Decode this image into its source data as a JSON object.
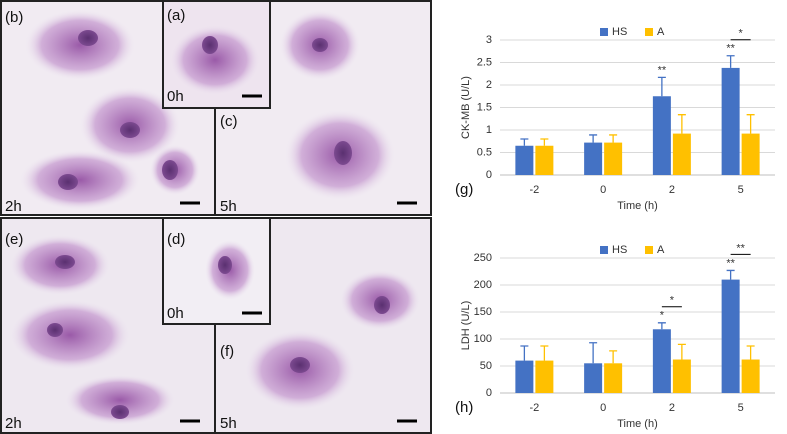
{
  "micrographs": [
    {
      "label": "(b)",
      "time": "2h"
    },
    {
      "label": "(a)",
      "time": "0h"
    },
    {
      "label": "(c)",
      "time": "5h"
    },
    {
      "label": "(e)",
      "time": "2h"
    },
    {
      "label": "(d)",
      "time": "0h"
    },
    {
      "label": "(f)",
      "time": "5h"
    }
  ],
  "chart_data": [
    {
      "type": "bar",
      "panel": "(g)",
      "y_label": "CK-MB (U/L)",
      "x_label": "Time (h)",
      "categories": [
        "-2",
        "0",
        "2",
        "5"
      ],
      "series": [
        {
          "name": "HS",
          "color": "#4472c4",
          "values": [
            0.65,
            0.72,
            1.75,
            2.38
          ],
          "errors": [
            0.15,
            0.17,
            0.42,
            0.27
          ]
        },
        {
          "name": "A",
          "color": "#ffc000",
          "values": [
            0.65,
            0.72,
            0.92,
            0.92
          ],
          "errors": [
            0.15,
            0.17,
            0.42,
            0.42
          ]
        }
      ],
      "ylim": [
        0,
        3
      ],
      "yticks": [
        0,
        0.5,
        1,
        1.5,
        2,
        2.5,
        3
      ],
      "grid": true,
      "annotations": [
        "**",
        "**",
        "*"
      ]
    },
    {
      "type": "bar",
      "panel": "(h)",
      "y_label": "LDH (U/L)",
      "x_label": "Time (h)",
      "categories": [
        "-2",
        "0",
        "2",
        "5"
      ],
      "series": [
        {
          "name": "HS",
          "color": "#4472c4",
          "values": [
            60,
            55,
            118,
            210
          ],
          "errors": [
            27,
            38,
            12,
            17
          ]
        },
        {
          "name": "A",
          "color": "#ffc000",
          "values": [
            60,
            55,
            62,
            62
          ],
          "errors": [
            27,
            23,
            28,
            25
          ]
        }
      ],
      "ylim": [
        0,
        250
      ],
      "yticks": [
        0,
        50,
        100,
        150,
        200,
        250
      ],
      "grid": true,
      "annotations": [
        "*",
        "*",
        "**",
        "**"
      ]
    }
  ]
}
